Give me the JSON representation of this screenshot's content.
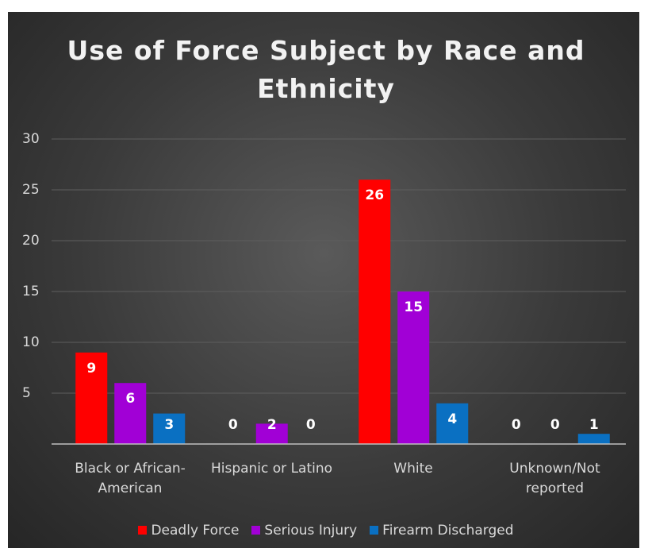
{
  "chart_data": {
    "type": "bar",
    "title": "Use of Force Subject by Race and Ethnicity",
    "categories": [
      "Black or African-American",
      "Hispanic or Latino",
      "White",
      "Unknown/Not reported"
    ],
    "series": [
      {
        "name": "Deadly Force",
        "color": "#ff0000",
        "values": [
          9,
          0,
          26,
          0
        ]
      },
      {
        "name": "Serious Injury",
        "color": "#a100d6",
        "values": [
          6,
          2,
          15,
          0
        ]
      },
      {
        "name": "Firearm Discharged",
        "color": "#0a70c2",
        "values": [
          3,
          0,
          4,
          1
        ]
      }
    ],
    "ylim": [
      0,
      30
    ],
    "yticks": [
      5,
      10,
      15,
      20,
      25,
      30
    ],
    "grid": true,
    "legend": "bottom"
  }
}
